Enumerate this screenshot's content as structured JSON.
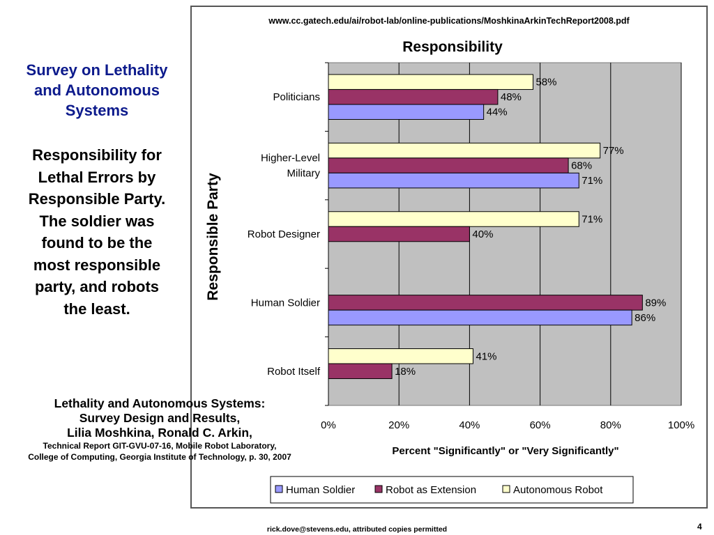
{
  "slide": {
    "title_lines": [
      "Survey on Lethality",
      "and Autonomous",
      "Systems"
    ],
    "body_lines": [
      "Responsibility for",
      "Lethal Errors by",
      "Responsible Party.",
      "The soldier was",
      "found to be the",
      "most responsible",
      "party, and robots",
      "the least."
    ],
    "citation": {
      "lines_large": [
        "Lethality and Autonomous Systems:",
        "Survey Design and Results,",
        "Lilia Moshkina, Ronald C. Arkin,"
      ],
      "lines_small": [
        "Technical Report GIT-GVU-07-16, Mobile Robot Laboratory,",
        "College of Computing, Georgia Institute of Technology, p. 30, 2007"
      ]
    },
    "footer": "rick.dove@stevens.edu, attributed copies permitted",
    "page_number": "4"
  },
  "chart_data": {
    "type": "bar",
    "orientation": "horizontal",
    "source_url": "www.cc.gatech.edu/ai/robot-lab/online-publications/MoshkinaArkinTechReport2008.pdf",
    "title": "Responsibility",
    "xlabel": "Percent \"Significantly\" or \"Very Significantly\"",
    "ylabel": "Responsible Party",
    "xlim": [
      0,
      100
    ],
    "xticks": [
      "0%",
      "20%",
      "40%",
      "60%",
      "80%",
      "100%"
    ],
    "grid": true,
    "legend_position": "bottom",
    "categories": [
      {
        "lines": [
          "Politicians"
        ]
      },
      {
        "lines": [
          "Higher-Level",
          "Military"
        ]
      },
      {
        "lines": [
          "Robot Designer"
        ]
      },
      {
        "lines": [
          "Human Soldier"
        ]
      },
      {
        "lines": [
          "Robot Itself"
        ]
      }
    ],
    "series": [
      {
        "name": "Human Soldier",
        "color": "#9999ff",
        "values": [
          44,
          71,
          null,
          86,
          null
        ],
        "labels": [
          "44%",
          "71%",
          null,
          "86%",
          null
        ]
      },
      {
        "name": "Robot as Extension",
        "color": "#993366",
        "values": [
          48,
          68,
          40,
          89,
          18
        ],
        "labels": [
          "48%",
          "68%",
          "40%",
          "89%",
          "18%"
        ]
      },
      {
        "name": "Autonomous Robot",
        "color": "#ffffcc",
        "values": [
          58,
          77,
          71,
          null,
          41
        ],
        "labels": [
          "58%",
          "77%",
          "71%",
          null,
          "41%"
        ]
      }
    ],
    "plot_background": "#c0c0c0"
  }
}
